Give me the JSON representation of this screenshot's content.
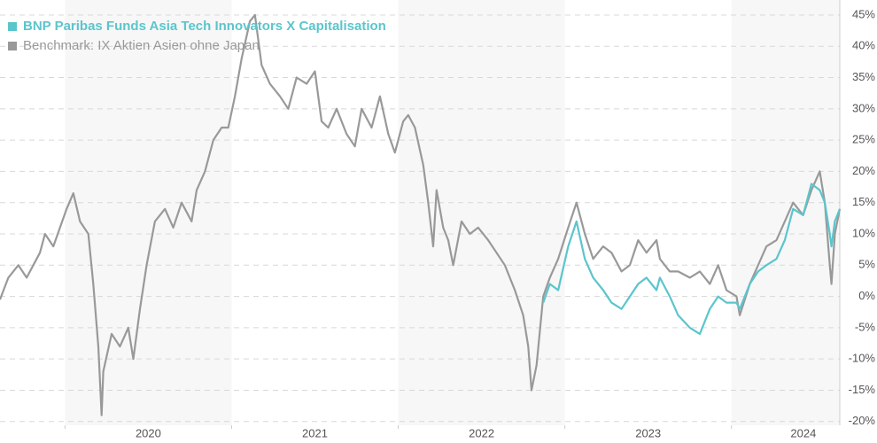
{
  "chart_data": {
    "type": "line",
    "x": [
      2019.61,
      2019.66,
      2019.72,
      2019.77,
      2019.85,
      2019.88,
      2019.93,
      2020.01,
      2020.05,
      2020.09,
      2020.14,
      2020.17,
      2020.2,
      2020.22,
      2020.23,
      2020.28,
      2020.33,
      2020.38,
      2020.41,
      2020.45,
      2020.49,
      2020.54,
      2020.6,
      2020.65,
      2020.7,
      2020.76,
      2020.79,
      2020.84,
      2020.89,
      2020.94,
      2020.98,
      2021.02,
      2021.06,
      2021.11,
      2021.14,
      2021.18,
      2021.23,
      2021.29,
      2021.34,
      2021.39,
      2021.45,
      2021.5,
      2021.54,
      2021.58,
      2021.63,
      2021.69,
      2021.74,
      2021.78,
      2021.84,
      2021.89,
      2021.94,
      2021.98,
      2022.03,
      2022.06,
      2022.1,
      2022.15,
      2022.18,
      2022.21,
      2022.23,
      2022.27,
      2022.3,
      2022.33,
      2022.38,
      2022.43,
      2022.48,
      2022.54,
      2022.59,
      2022.64,
      2022.7,
      2022.75,
      2022.78,
      2022.8,
      2022.83,
      2022.87,
      2022.91,
      2022.96,
      2023.02,
      2023.07,
      2023.12,
      2023.17,
      2023.23,
      2023.28,
      2023.34,
      2023.39,
      2023.44,
      2023.49,
      2023.55,
      2023.57,
      2023.63,
      2023.68,
      2023.75,
      2023.81,
      2023.87,
      2023.92,
      2023.97,
      2024.03,
      2024.05,
      2024.11,
      2024.16,
      2024.21,
      2024.27,
      2024.32,
      2024.37,
      2024.43,
      2024.48,
      2024.53,
      2024.56,
      2024.59,
      2024.6,
      2024.62,
      2024.65
    ],
    "series": [
      {
        "name": "BNP Paribas Funds Asia Tech Innovators X Capitalisation",
        "color": "#5bc5cc",
        "values": [
          null,
          null,
          null,
          null,
          null,
          null,
          null,
          null,
          null,
          null,
          null,
          null,
          null,
          null,
          null,
          null,
          null,
          null,
          null,
          null,
          null,
          null,
          null,
          null,
          null,
          null,
          null,
          null,
          null,
          null,
          null,
          null,
          null,
          null,
          null,
          null,
          null,
          null,
          null,
          null,
          null,
          null,
          null,
          null,
          null,
          null,
          null,
          null,
          null,
          null,
          null,
          null,
          null,
          null,
          null,
          null,
          null,
          null,
          null,
          null,
          null,
          null,
          null,
          null,
          null,
          null,
          null,
          null,
          null,
          null,
          null,
          null,
          null,
          -1,
          2,
          1,
          8,
          12,
          6,
          3,
          1,
          -1,
          -2,
          0,
          2,
          3,
          1,
          3,
          0,
          -3,
          -5,
          -6,
          -2,
          0,
          -1,
          -1,
          -2,
          2,
          4,
          5,
          6,
          9,
          14,
          13,
          18,
          17,
          15,
          10,
          8,
          12,
          14
        ]
      },
      {
        "name": "Benchmark: IX Aktien Asien ohne Japan",
        "color": "#999999",
        "values": [
          -0.5,
          3,
          5,
          3,
          7,
          10,
          8,
          14,
          16.5,
          12,
          10,
          2,
          -8,
          -19,
          -12,
          -6,
          -8,
          -5,
          -10,
          -2,
          5,
          12,
          14,
          11,
          15,
          12,
          17,
          20,
          25,
          27,
          27,
          32,
          38,
          44,
          45,
          37,
          34,
          32,
          30,
          35,
          34,
          36,
          28,
          27,
          30,
          26,
          24,
          30,
          27,
          32,
          26,
          23,
          28,
          29,
          27,
          21,
          15,
          8,
          17,
          11,
          9,
          5,
          12,
          10,
          11,
          9,
          7,
          5,
          1,
          -3,
          -8,
          -15,
          -11,
          0,
          3,
          6,
          11,
          15,
          10,
          6,
          8,
          7,
          4,
          5,
          9,
          7,
          9,
          6,
          4,
          4,
          3,
          4,
          2,
          5,
          1,
          0,
          -3,
          2,
          5,
          8,
          9,
          12,
          15,
          13,
          17,
          20,
          15,
          5,
          2,
          10,
          14
        ]
      }
    ],
    "xlim": [
      2019.61,
      2024.65
    ],
    "xticks": [
      2020,
      2021,
      2022,
      2023,
      2024
    ],
    "ylim": [
      -20.6,
      47.4
    ],
    "yticks": [
      {
        "value": -20,
        "label": "-20%"
      },
      {
        "value": -15,
        "label": "-15%"
      },
      {
        "value": -10,
        "label": "-10%"
      },
      {
        "value": -5,
        "label": "-5%"
      },
      {
        "value": 0,
        "label": "0%"
      },
      {
        "value": 5,
        "label": "5%"
      },
      {
        "value": 10,
        "label": "10%"
      },
      {
        "value": 15,
        "label": "15%"
      },
      {
        "value": 20,
        "label": "20%"
      },
      {
        "value": 25,
        "label": "25%"
      },
      {
        "value": 30,
        "label": "30%"
      },
      {
        "value": 35,
        "label": "35%"
      },
      {
        "value": 40,
        "label": "40%"
      },
      {
        "value": 45,
        "label": "45%"
      }
    ],
    "grid": true,
    "legend": "top-left"
  }
}
